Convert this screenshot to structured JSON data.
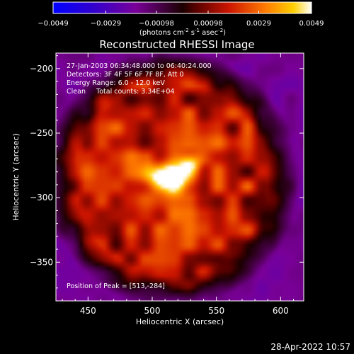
{
  "chart_data": {
    "type": "heatmap",
    "title": "Reconstructed RHESSI Image",
    "xlabel": "Heliocentric X (arcsec)",
    "ylabel": "Heliocentric Y (arcsec)",
    "xlim": [
      425,
      618
    ],
    "ylim": [
      -380,
      -188
    ],
    "x_ticks": [
      450,
      500,
      550,
      600
    ],
    "y_ticks": [
      -200,
      -250,
      -300,
      -350
    ],
    "colorbar": {
      "vmin": -0.0049,
      "vmax": 0.0049,
      "ticks": [
        -0.0049,
        -0.0029,
        -0.00098,
        0.00098,
        0.0029,
        0.0049
      ],
      "tick_labels": [
        "-0.0049",
        "-0.0029",
        "-0.00098",
        "0.00098",
        "0.0029",
        "0.0049"
      ],
      "unit_label_parts": [
        "(photons cm",
        "-2",
        " s",
        "-1",
        " asec",
        "-2",
        ")"
      ]
    },
    "peak": {
      "x": 513,
      "y": -284,
      "value": 0.0049
    },
    "info_lines": [
      "27-Jan-2003 06:34:48.000 to 06:40:24.000",
      "Detectors: 3F 4F 5F 6F 7F 8F, Att 0",
      "Energy Range: 6.0 - 12.0 keV",
      "Clean     Total counts: 3.34E+04"
    ],
    "peak_label": "Position of Peak = [513,-284]"
  },
  "footer": {
    "date": "28-Apr-2022 10:57"
  }
}
